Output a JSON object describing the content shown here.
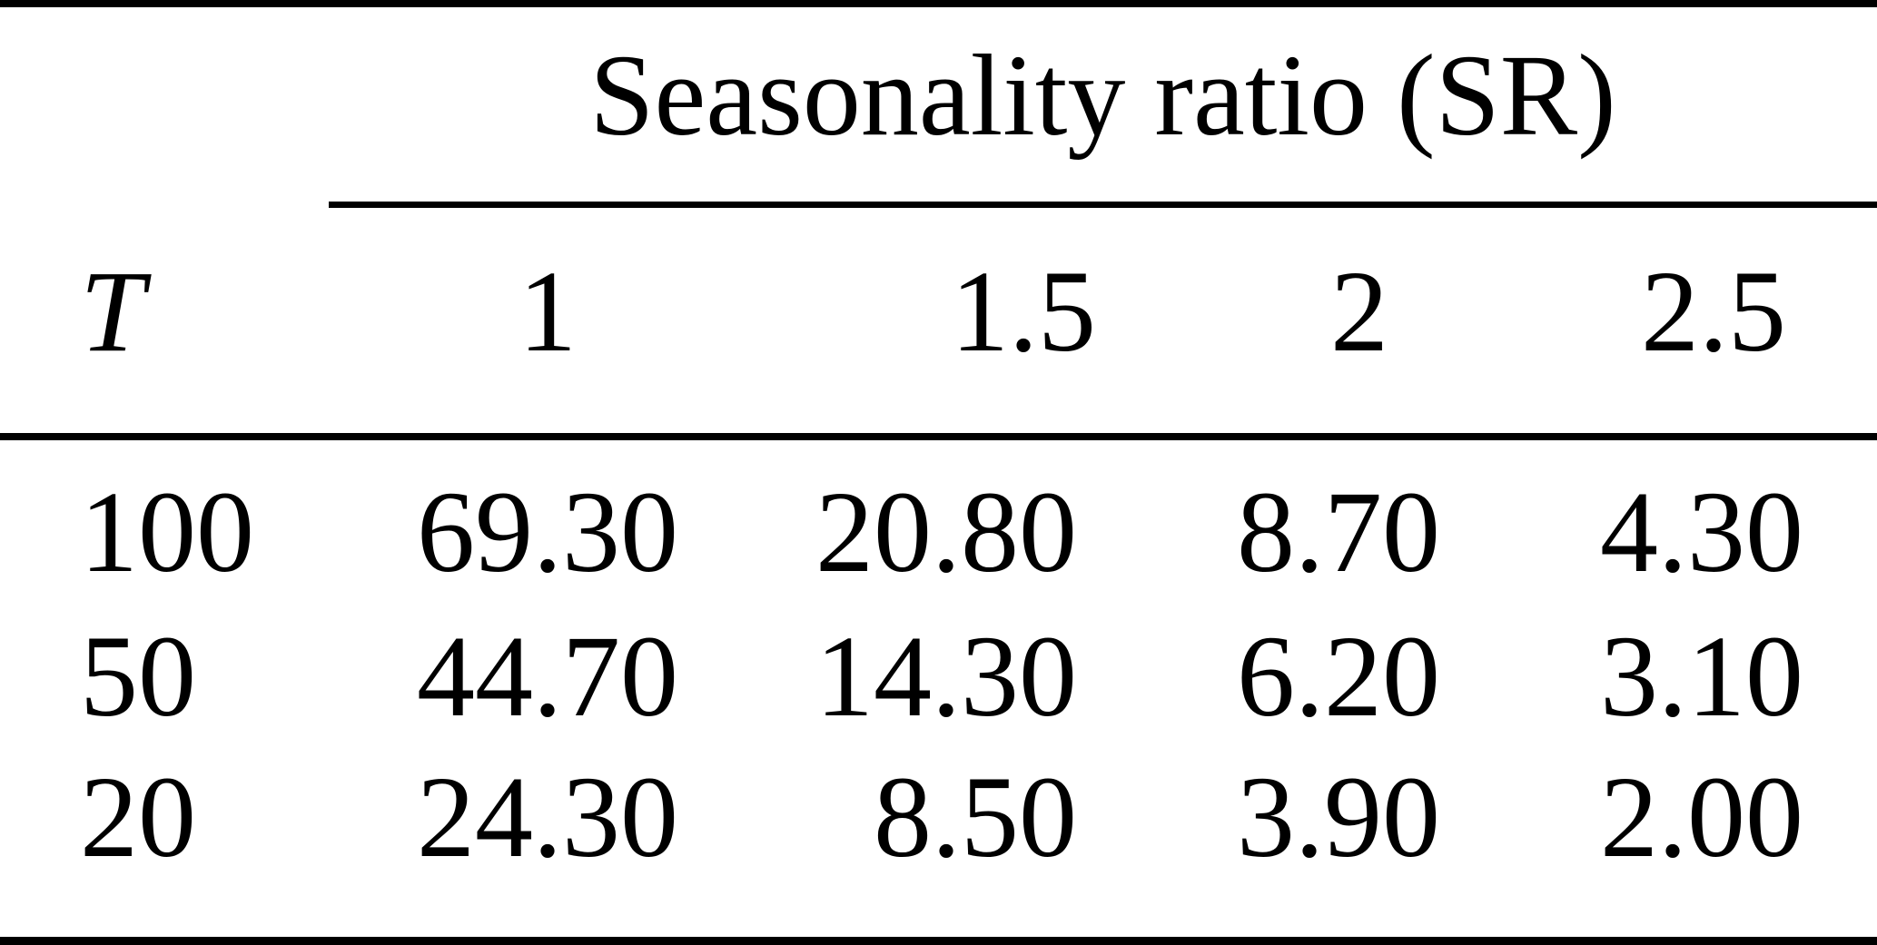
{
  "table": {
    "spanner_label": "Seasonality ratio (SR)",
    "row_header_label": "T",
    "col_headers": [
      "1",
      "1.5",
      "2",
      "2.5"
    ],
    "rows": [
      {
        "t": "100",
        "values": [
          "69.30",
          "20.80",
          "8.70",
          "4.30"
        ]
      },
      {
        "t": "50",
        "values": [
          "44.70",
          "14.30",
          "6.20",
          "3.10"
        ]
      },
      {
        "t": "20",
        "values": [
          "24.30",
          "8.50",
          "3.90",
          "2.00"
        ]
      }
    ]
  },
  "colors": {
    "background": "#ffffff",
    "text": "#000000",
    "rule": "#000000"
  }
}
